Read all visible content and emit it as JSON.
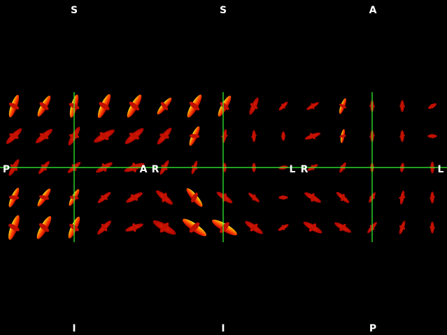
{
  "viewer": {
    "background": "#000000",
    "crosshair_color": "#33ff33",
    "glyph_colors": [
      "#b00000",
      "#e02000",
      "#ff6000",
      "#ffb000",
      "#ffff40"
    ],
    "panels": [
      {
        "name": "sagittal",
        "orientation": {
          "top": "S",
          "bottom": "I",
          "left": "P",
          "right": "A"
        }
      },
      {
        "name": "coronal",
        "orientation": {
          "top": "S",
          "bottom": "I",
          "left": "R",
          "right": "L"
        }
      },
      {
        "name": "axial",
        "orientation": {
          "top": "A",
          "bottom": "P",
          "left": "R",
          "right": "L"
        }
      }
    ]
  }
}
